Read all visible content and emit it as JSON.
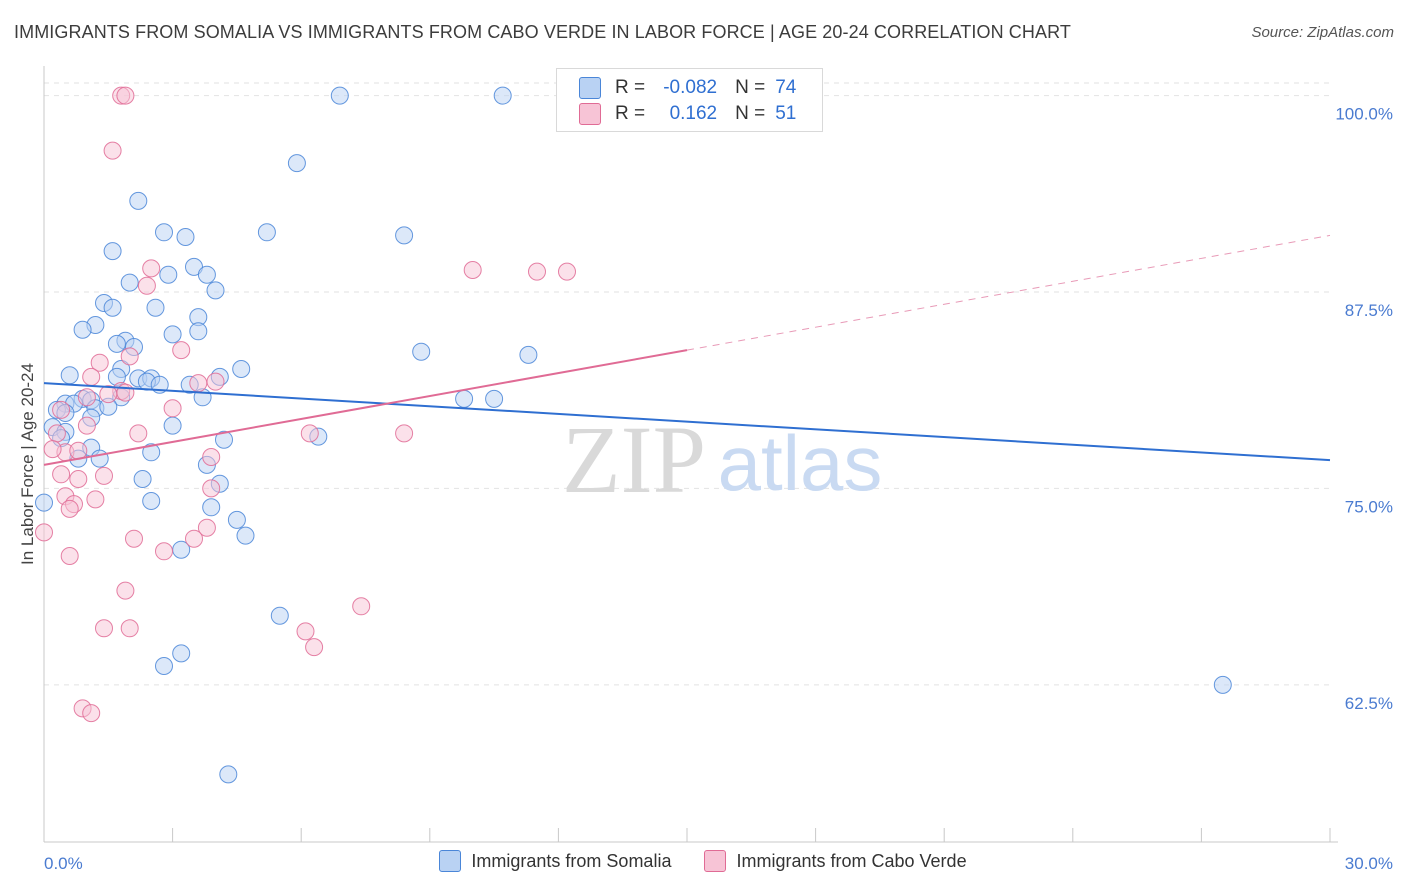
{
  "title": "IMMIGRANTS FROM SOMALIA VS IMMIGRANTS FROM CABO VERDE IN LABOR FORCE | AGE 20-24 CORRELATION CHART",
  "source": "Source: ZipAtlas.com",
  "watermark": {
    "zip": "ZIP",
    "atlas": "atlas"
  },
  "colors": {
    "somalia": "#4a86d8",
    "somalia_fill": "#b9d2f3",
    "caboverde": "#e06b95",
    "caboverde_fill": "#f7c4d6",
    "tick_text": "#4a7bd0",
    "grid": "#e2e2e2"
  },
  "stats": {
    "somalia": {
      "r_label": "R =",
      "r": "-0.082",
      "n_label": "N =",
      "n": "74"
    },
    "caboverde": {
      "r_label": "R =",
      "r": "0.162",
      "n_label": "N =",
      "n": "51"
    }
  },
  "legend": {
    "somalia": "Immigrants from Somalia",
    "caboverde": "Immigrants from Cabo Verde"
  },
  "chart_data": {
    "type": "scatter",
    "title": "IMMIGRANTS FROM SOMALIA VS IMMIGRANTS FROM CABO VERDE IN LABOR FORCE | AGE 20-24 CORRELATION CHART",
    "xlabel": "",
    "ylabel": "In Labor Force | Age 20-24",
    "xlim": [
      0,
      30
    ],
    "ylim": [
      52.5,
      101.5
    ],
    "x_tick_labels": [
      "0.0%",
      "30.0%"
    ],
    "y_ticks": [
      62.5,
      75.0,
      87.5,
      100.0
    ],
    "y_tick_labels": [
      "62.5%",
      "75.0%",
      "87.5%",
      "100.0%"
    ],
    "grid": "horizontal dashed",
    "series": [
      {
        "name": "Immigrants from Somalia",
        "trend": {
          "x": [
            0,
            30
          ],
          "y": [
            81.7,
            76.8
          ]
        },
        "points": [
          [
            6.9,
            100.0
          ],
          [
            10.7,
            100.0
          ],
          [
            5.9,
            95.7
          ],
          [
            2.2,
            93.3
          ],
          [
            2.8,
            91.3
          ],
          [
            3.3,
            91.0
          ],
          [
            5.2,
            91.3
          ],
          [
            8.4,
            91.1
          ],
          [
            1.6,
            90.1
          ],
          [
            3.5,
            89.1
          ],
          [
            2.9,
            88.6
          ],
          [
            3.8,
            88.6
          ],
          [
            2.0,
            88.1
          ],
          [
            4.0,
            87.6
          ],
          [
            1.4,
            86.8
          ],
          [
            1.6,
            86.5
          ],
          [
            2.6,
            86.5
          ],
          [
            3.6,
            85.9
          ],
          [
            1.2,
            85.4
          ],
          [
            0.9,
            85.1
          ],
          [
            3.0,
            84.8
          ],
          [
            3.6,
            85.0
          ],
          [
            1.9,
            84.4
          ],
          [
            1.7,
            84.2
          ],
          [
            2.1,
            84.0
          ],
          [
            8.8,
            83.7
          ],
          [
            11.3,
            83.5
          ],
          [
            4.6,
            82.6
          ],
          [
            1.8,
            82.6
          ],
          [
            0.6,
            82.2
          ],
          [
            1.7,
            82.1
          ],
          [
            2.2,
            82.0
          ],
          [
            2.5,
            82.0
          ],
          [
            4.1,
            82.1
          ],
          [
            2.4,
            81.8
          ],
          [
            2.7,
            81.6
          ],
          [
            3.4,
            81.6
          ],
          [
            1.8,
            80.8
          ],
          [
            3.7,
            80.8
          ],
          [
            9.8,
            80.7
          ],
          [
            10.5,
            80.7
          ],
          [
            0.9,
            80.7
          ],
          [
            1.1,
            80.6
          ],
          [
            0.5,
            80.4
          ],
          [
            0.7,
            80.4
          ],
          [
            1.2,
            80.1
          ],
          [
            0.3,
            80.0
          ],
          [
            0.5,
            79.8
          ],
          [
            1.1,
            79.5
          ],
          [
            3.0,
            79.0
          ],
          [
            0.2,
            78.9
          ],
          [
            0.5,
            78.6
          ],
          [
            6.4,
            78.3
          ],
          [
            4.2,
            78.1
          ],
          [
            1.1,
            77.6
          ],
          [
            2.5,
            77.3
          ],
          [
            0.8,
            76.9
          ],
          [
            1.3,
            76.9
          ],
          [
            3.8,
            76.5
          ],
          [
            2.3,
            75.6
          ],
          [
            4.1,
            75.3
          ],
          [
            0.0,
            74.1
          ],
          [
            2.5,
            74.2
          ],
          [
            3.9,
            73.8
          ],
          [
            4.5,
            73.0
          ],
          [
            4.7,
            72.0
          ],
          [
            3.2,
            71.1
          ],
          [
            5.5,
            66.9
          ],
          [
            3.2,
            64.5
          ],
          [
            2.8,
            63.7
          ],
          [
            27.5,
            62.5
          ],
          [
            4.3,
            56.8
          ],
          [
            0.4,
            78.2
          ],
          [
            1.5,
            80.2
          ]
        ]
      },
      {
        "name": "Immigrants from Cabo Verde",
        "trend": {
          "x": [
            0,
            15.0
          ],
          "y": [
            76.5,
            83.8
          ]
        },
        "trend_dashed": {
          "x": [
            15.0,
            30
          ],
          "y": [
            83.8,
            91.1
          ]
        },
        "points": [
          [
            1.8,
            100.0
          ],
          [
            1.9,
            100.0
          ],
          [
            1.6,
            96.5
          ],
          [
            2.5,
            89.0
          ],
          [
            2.4,
            87.9
          ],
          [
            10.0,
            88.9
          ],
          [
            11.5,
            88.8
          ],
          [
            12.2,
            88.8
          ],
          [
            3.2,
            83.8
          ],
          [
            2.0,
            83.4
          ],
          [
            1.3,
            83.0
          ],
          [
            1.1,
            82.1
          ],
          [
            3.6,
            81.7
          ],
          [
            4.0,
            81.8
          ],
          [
            1.8,
            81.2
          ],
          [
            1.9,
            81.1
          ],
          [
            1.0,
            80.8
          ],
          [
            3.0,
            80.1
          ],
          [
            0.4,
            80.0
          ],
          [
            1.0,
            79.0
          ],
          [
            0.3,
            78.5
          ],
          [
            2.2,
            78.5
          ],
          [
            6.2,
            78.5
          ],
          [
            8.4,
            78.5
          ],
          [
            0.5,
            77.3
          ],
          [
            0.8,
            77.4
          ],
          [
            3.9,
            77.0
          ],
          [
            0.4,
            75.9
          ],
          [
            0.8,
            75.6
          ],
          [
            1.4,
            75.8
          ],
          [
            3.9,
            75.0
          ],
          [
            0.5,
            74.5
          ],
          [
            0.7,
            74.0
          ],
          [
            1.2,
            74.3
          ],
          [
            0.6,
            73.7
          ],
          [
            3.8,
            72.5
          ],
          [
            2.1,
            71.8
          ],
          [
            3.5,
            71.8
          ],
          [
            2.8,
            71.0
          ],
          [
            0.6,
            70.7
          ],
          [
            0.0,
            72.2
          ],
          [
            1.9,
            68.5
          ],
          [
            7.4,
            67.5
          ],
          [
            1.4,
            66.1
          ],
          [
            2.0,
            66.1
          ],
          [
            6.1,
            65.9
          ],
          [
            6.3,
            64.9
          ],
          [
            0.9,
            61.0
          ],
          [
            1.1,
            60.7
          ],
          [
            0.2,
            77.5
          ],
          [
            1.5,
            81.0
          ]
        ]
      }
    ]
  }
}
